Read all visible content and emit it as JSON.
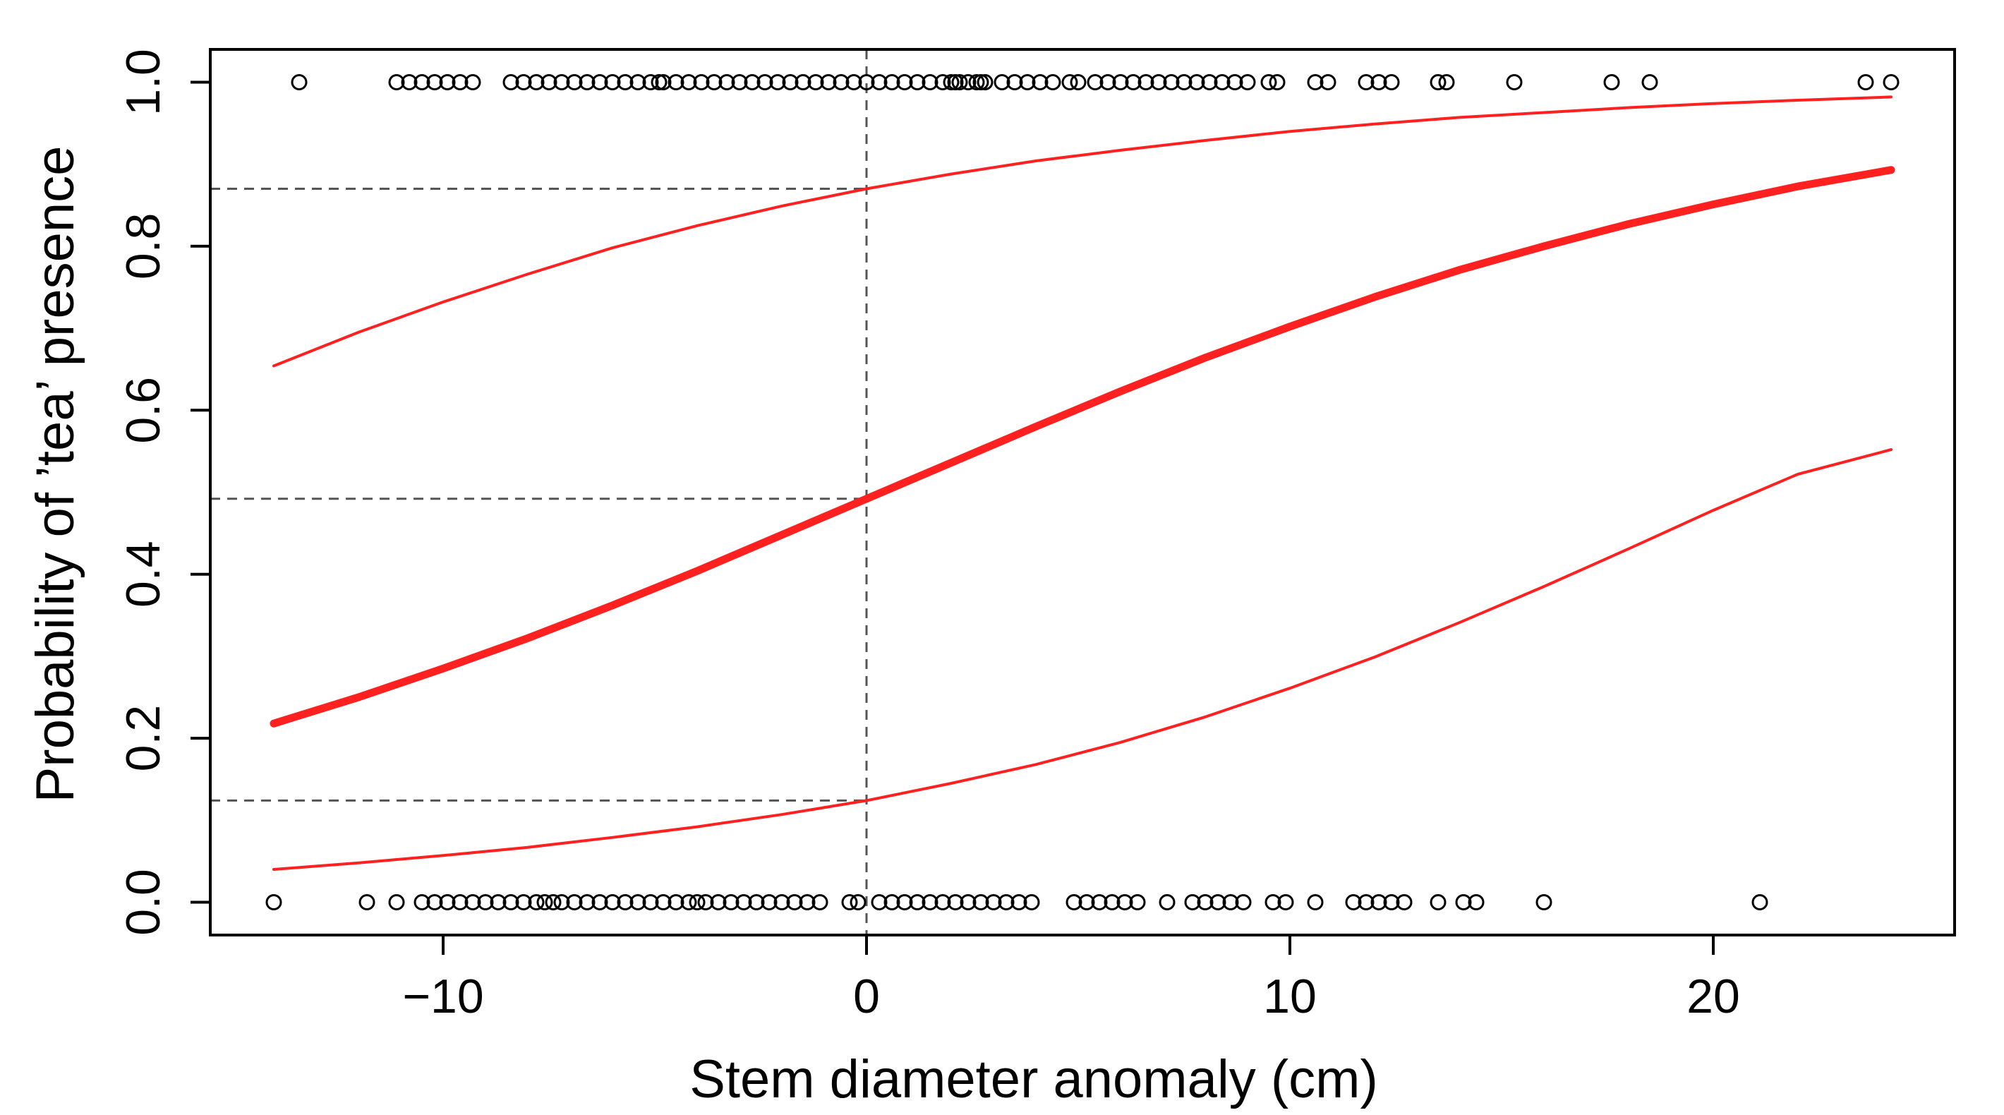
{
  "chart_data": {
    "type": "line",
    "title": "",
    "xlabel": "Stem diameter anomaly (cm)",
    "ylabel": "Probability of ’tea’ presence",
    "xlim": [
      -15.5,
      25.7
    ],
    "ylim": [
      -0.04,
      1.04
    ],
    "x_ticks": [
      -10,
      0,
      10,
      20
    ],
    "x_tick_labels": [
      "−10",
      "0",
      "10",
      "20"
    ],
    "y_ticks": [
      0.0,
      0.2,
      0.4,
      0.6,
      0.8,
      1.0
    ],
    "y_tick_labels": [
      "0.0",
      "0.2",
      "0.4",
      "0.6",
      "0.8",
      "1.0"
    ],
    "grid": false,
    "colors": {
      "fit": "#ff2020",
      "band": "#ff2020",
      "reference": "#555555",
      "points": "#000000"
    },
    "series": [
      {
        "style": "fitted-curve-thick",
        "x": [
          -14,
          -12,
          -10,
          -8,
          -6,
          -4,
          -2,
          0,
          2,
          4,
          6,
          8,
          10,
          12,
          14,
          16,
          18,
          20,
          22,
          24.2
        ],
        "y": [
          0.218,
          0.25,
          0.285,
          0.322,
          0.362,
          0.404,
          0.448,
          0.492,
          0.536,
          0.58,
          0.623,
          0.664,
          0.702,
          0.738,
          0.771,
          0.8,
          0.827,
          0.851,
          0.873,
          0.893
        ]
      },
      {
        "style": "confidence-upper",
        "x": [
          -14,
          -12,
          -10,
          -8,
          -6,
          -4,
          -2,
          0,
          2,
          4,
          6,
          8,
          10,
          12,
          14,
          16,
          18,
          20,
          22,
          24.2
        ],
        "y": [
          0.654,
          0.695,
          0.732,
          0.766,
          0.798,
          0.825,
          0.849,
          0.87,
          0.888,
          0.904,
          0.917,
          0.929,
          0.94,
          0.949,
          0.957,
          0.963,
          0.969,
          0.974,
          0.978,
          0.982
        ]
      },
      {
        "style": "confidence-lower",
        "x": [
          -14,
          -12,
          -10,
          -8,
          -6,
          -4,
          -2,
          0,
          2,
          4,
          6,
          8,
          10,
          12,
          14,
          16,
          18,
          20,
          22,
          24.2
        ],
        "y": [
          0.04,
          0.048,
          0.057,
          0.067,
          0.079,
          0.092,
          0.107,
          0.124,
          0.145,
          0.168,
          0.195,
          0.226,
          0.261,
          0.299,
          0.341,
          0.385,
          0.431,
          0.478,
          0.522,
          0.552
        ]
      }
    ],
    "points_present": {
      "y": 1,
      "x": [
        -13.4,
        -11.1,
        -10.8,
        -10.5,
        -10.2,
        -9.9,
        -9.6,
        -9.3,
        -8.4,
        -8.1,
        -7.8,
        -7.5,
        -7.2,
        -6.9,
        -6.6,
        -6.3,
        -6.0,
        -5.7,
        -5.4,
        -5.1,
        -4.9,
        -4.8,
        -4.5,
        -4.2,
        -3.9,
        -3.6,
        -3.3,
        -3.0,
        -2.7,
        -2.4,
        -2.1,
        -1.8,
        -1.5,
        -1.2,
        -0.9,
        -0.6,
        -0.3,
        0.0,
        0.3,
        0.6,
        0.9,
        1.2,
        1.5,
        1.8,
        2.0,
        2.1,
        2.2,
        2.4,
        2.6,
        2.7,
        2.8,
        3.2,
        3.5,
        3.8,
        4.1,
        4.4,
        4.8,
        5.0,
        5.4,
        5.7,
        6.0,
        6.3,
        6.6,
        6.9,
        7.2,
        7.5,
        7.8,
        8.1,
        8.4,
        8.7,
        9.0,
        9.5,
        9.7,
        10.6,
        10.9,
        11.8,
        12.1,
        12.4,
        13.5,
        13.7,
        15.3,
        17.6,
        18.5,
        23.6,
        24.2
      ]
    },
    "points_absent": {
      "y": 0,
      "x": [
        -14.0,
        -11.8,
        -11.1,
        -10.5,
        -10.2,
        -9.9,
        -9.6,
        -9.3,
        -9.0,
        -8.7,
        -8.4,
        -8.1,
        -7.8,
        -7.6,
        -7.4,
        -7.2,
        -6.9,
        -6.6,
        -6.3,
        -6.0,
        -5.7,
        -5.4,
        -5.1,
        -4.8,
        -4.5,
        -4.2,
        -4.0,
        -3.8,
        -3.5,
        -3.2,
        -2.9,
        -2.6,
        -2.3,
        -2.0,
        -1.7,
        -1.4,
        -1.1,
        -0.4,
        -0.2,
        0.3,
        0.6,
        0.9,
        1.2,
        1.5,
        1.8,
        2.1,
        2.4,
        2.7,
        3.0,
        3.3,
        3.6,
        3.9,
        4.9,
        5.2,
        5.5,
        5.8,
        6.1,
        6.4,
        7.1,
        7.7,
        8.0,
        8.3,
        8.6,
        8.9,
        9.6,
        9.9,
        10.6,
        11.5,
        11.8,
        12.1,
        12.4,
        12.7,
        13.5,
        14.1,
        14.4,
        16.0,
        21.1
      ]
    },
    "reference_lines": {
      "vertical_x": 0,
      "horizontal_y": [
        0.87,
        0.492,
        0.124
      ]
    }
  }
}
